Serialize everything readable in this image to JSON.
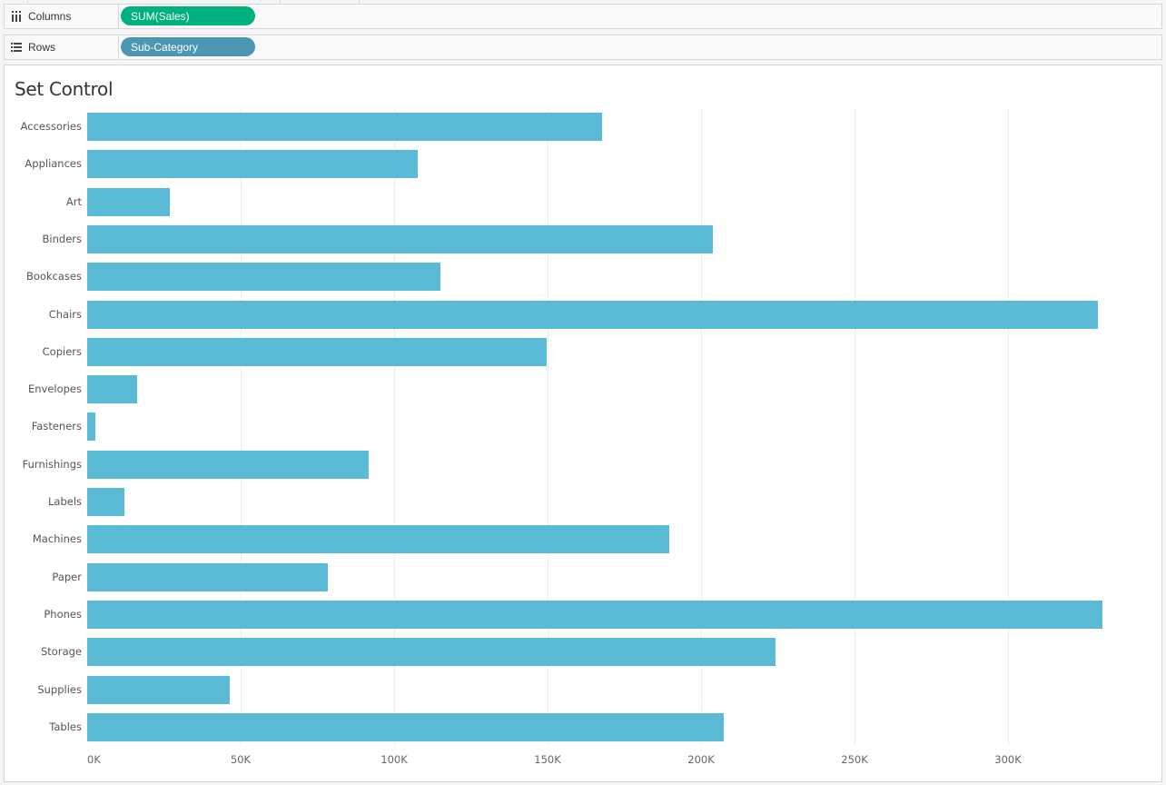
{
  "shelves": {
    "columns": {
      "label": "Columns",
      "icon": "columns-icon",
      "pill": "SUM(Sales)",
      "pill_color": "#00b180"
    },
    "rows": {
      "label": "Rows",
      "icon": "rows-list-icon",
      "pill": "Sub-Category",
      "pill_color": "#4a96b3"
    }
  },
  "sheet": {
    "title": "Set Control"
  },
  "colors": {
    "bar": "#5bbad5",
    "gridline": "#ececec"
  },
  "chart_data": {
    "type": "bar",
    "orientation": "horizontal",
    "title": "Set Control",
    "xlabel": "",
    "ylabel": "",
    "categories": [
      "Accessories",
      "Appliances",
      "Art",
      "Binders",
      "Bookcases",
      "Chairs",
      "Copiers",
      "Envelopes",
      "Fasteners",
      "Furnishings",
      "Labels",
      "Machines",
      "Paper",
      "Phones",
      "Storage",
      "Supplies",
      "Tables"
    ],
    "values": [
      167800,
      107700,
      26900,
      203800,
      115100,
      329300,
      149700,
      16300,
      2700,
      91700,
      12100,
      189600,
      78400,
      330800,
      224300,
      46400,
      207400
    ],
    "series": [
      {
        "name": "SUM(Sales)",
        "values": [
          167800,
          107700,
          26900,
          203800,
          115100,
          329300,
          149700,
          16300,
          2700,
          91700,
          12100,
          189600,
          78400,
          330800,
          224300,
          46400,
          207400
        ]
      }
    ],
    "xlim": [
      0,
      350000
    ],
    "x_ticks": [
      "0K",
      "50K",
      "100K",
      "150K",
      "200K",
      "250K",
      "300K"
    ],
    "x_tick_values": [
      0,
      50000,
      100000,
      150000,
      200000,
      250000,
      300000
    ],
    "grid": {
      "vertical": true,
      "horizontal": false
    },
    "legend": null
  }
}
